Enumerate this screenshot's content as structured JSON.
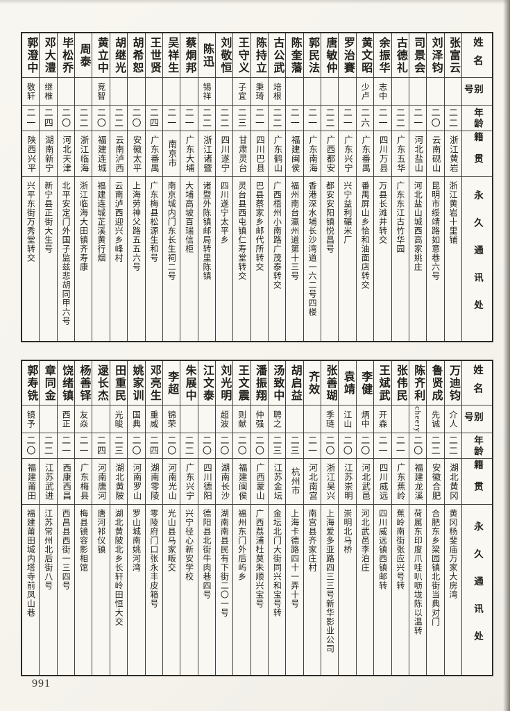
{
  "page_number": "991",
  "column_headers": {
    "name": "姓名",
    "courtesy": "别号",
    "age": "年龄",
    "native": "籍贯",
    "address": "永久通讯处"
  },
  "tables": [
    {
      "persons": [
        {
          "name": "张富云",
          "hao": "",
          "age": "二二",
          "native": "浙江黄岩",
          "address": "浙江黄岩十里铺"
        },
        {
          "name": "刘泽钧",
          "hao": "",
          "age": "二〇",
          "native": "云南砚山",
          "address": "昆明市绥靖路如意巷六号"
        },
        {
          "name": "司景会",
          "hao": "",
          "age": "二一",
          "native": "河北盐山",
          "address": "河北盐山城西高家姚庄"
        },
        {
          "name": "古德礼",
          "hao": "",
          "age": "二二",
          "native": "广东五华",
          "address": "广东东江古竹华园"
        },
        {
          "name": "余振华",
          "hao": "志中",
          "age": "二一",
          "native": "四川万县",
          "address": "万县长滩井转交"
        },
        {
          "name": "黄文昭",
          "hao": "少卢",
          "age": "二六",
          "native": "广东番禺",
          "address": "番禺屏山乡恰和油面店转交"
        },
        {
          "name": "罗治賽",
          "hao": "",
          "age": "二一",
          "native": "广东兴宁",
          "address": "兴宁益利碾米厂"
        },
        {
          "name": "唐敏仲",
          "hao": "",
          "age": "二二",
          "native": "广西都安",
          "address": "都安安阳镇悦昌号"
        },
        {
          "name": "郭民法",
          "hao": "",
          "age": "二一",
          "native": "广东南海",
          "address": "香港深水埔长沙湾道一六二号四楼"
        },
        {
          "name": "陈奎藩",
          "hao": "",
          "age": "二一",
          "native": "福建闽侯",
          "address": "福州南台瀛州道第十三号"
        },
        {
          "name": "古公武",
          "hao": "培根",
          "age": "二二",
          "native": "广东鹤山",
          "address": "广西梧州小南路广茂泰转交"
        },
        {
          "name": "陈持立",
          "hao": "秉琦",
          "age": "二一",
          "native": "四川巴县",
          "address": "巴县蔡家乡邮代所转交"
        },
        {
          "name": "王守义",
          "hao": "子宜",
          "age": "二三",
          "native": "甘肃灵台",
          "address": "灵台县西屯镇仁寿堂转交"
        },
        {
          "name": "刘敬恒",
          "hao": "",
          "age": "二二",
          "native": "四川遂宁",
          "address": "四川遂宁太平乡"
        },
        {
          "name": "陈迅",
          "hao": "锡祥",
          "age": "二二",
          "native": "浙江诸暨",
          "address": "诸暨外陈镇邮局转里陈镇"
        },
        {
          "name": "蔡烔邦",
          "hao": "",
          "age": "二一",
          "native": "广东大埔",
          "address": "大埔高坡百瑞信柜"
        },
        {
          "name": "吴祥生",
          "hao": "",
          "age": "二一",
          "native": "南京市",
          "address": "南京城内门东长生祠二号"
        },
        {
          "name": "王世贤",
          "hao": "",
          "age": "二四",
          "native": "广东番禺",
          "address": "广东梅县松源生和号"
        },
        {
          "name": "胡希恕",
          "hao": "",
          "age": "二〇",
          "native": "安徽太平",
          "address": "上海劳神父路五五六号"
        },
        {
          "name": "胡继光",
          "hao": "",
          "age": "二二",
          "native": "云南泸西",
          "address": "云南泸西迎兴乡峰村"
        },
        {
          "name": "黄立中",
          "hao": "竞智",
          "age": "二〇",
          "native": "福建连城",
          "address": "福建连城芷溪黄行烟"
        },
        {
          "name": "周泰",
          "hao": "",
          "age": "二二",
          "native": "浙江临海",
          "address": "浙江临海大田镇齐寿康"
        },
        {
          "name": "毕松乔",
          "hao": "",
          "age": "二〇",
          "native": "河北天津",
          "address": "北平安定门外国子监兹悲胡同甲六号"
        },
        {
          "name": "邓大澧",
          "hao": "继椎",
          "age": "二四",
          "native": "湖南新宁",
          "address": "新宁县正街大生号"
        },
        {
          "name": "郭澄中",
          "hao": "敬轩",
          "age": "二一",
          "native": "陕西兴平",
          "address": "兴平东街万秀堂转交"
        }
      ]
    },
    {
      "persons": [
        {
          "name": "万迪钧",
          "hao": "介人",
          "age": "二二",
          "native": "湖北黄冈",
          "address": "黄冈杨斐庙万家大房湾"
        },
        {
          "name": "鲁贤成",
          "hao": "先诚",
          "age": "二二",
          "native": "安徽合肥",
          "address": "合肥东乡梁园镇北街当典对门"
        },
        {
          "name": "陈齐利",
          "hao": "cheery",
          "age": "二〇",
          "native": "福建龙溪",
          "address": "荷属东印度爪哇叭呖垅陈以温转"
        },
        {
          "name": "张伟民",
          "hao": "",
          "age": "二一",
          "native": "广东蕉岭",
          "address": "蕉岭南街张应兴号转"
        },
        {
          "name": "王斌武",
          "hao": "开森",
          "age": "二一",
          "native": "四川威远",
          "address": "四川威远镇西镇邮转"
        },
        {
          "name": "李健",
          "hao": "炳中",
          "age": "二〇",
          "native": "河北武邑",
          "address": "河北武邑李泊庄"
        },
        {
          "name": "袁靖",
          "hao": "江山",
          "age": "二〇",
          "native": "江苏崇明",
          "address": "崇明北马桥"
        },
        {
          "name": "张善瑚",
          "hao": "季琏",
          "age": "二〇",
          "native": "浙江吴兴",
          "address": "上海爱多亚路四三三号新华影业公司"
        },
        {
          "name": "齐效",
          "hao": "",
          "age": "二一",
          "native": "河北南宫",
          "address": "南宫县齐家庄村"
        },
        {
          "name": "胡启益",
          "hao": "",
          "age": "二三",
          "native": "杭州市",
          "address": "上海卡德路四十一弄十号"
        },
        {
          "name": "汤致中",
          "hao": "聘之",
          "age": "二三",
          "native": "江苏金坛",
          "address": "金坛北门大街同兴和宝号转"
        },
        {
          "name": "潘振翔",
          "hao": "仲强",
          "age": "二〇",
          "native": "广西蒙山",
          "address": "广西荔浦杜莫朱顺兴宝号"
        },
        {
          "name": "王文震",
          "hao": "则献",
          "age": "二〇",
          "native": "福建闽侯",
          "address": "福州东门外后屿乡"
        },
        {
          "name": "刘光明",
          "hao": "超波",
          "age": "二〇",
          "native": "湖南长沙",
          "address": "湖南南县民有下街二〇一号"
        },
        {
          "name": "江文泰",
          "hao": "",
          "age": "二〇",
          "native": "四川德阳",
          "address": "德阳县北街牛肉巷四号"
        },
        {
          "name": "朱展中",
          "hao": "",
          "age": "二二",
          "native": "广东兴宁",
          "address": "兴宁径心新安学校"
        },
        {
          "name": "李超",
          "hao": "锦荣",
          "age": "二〇",
          "native": "河南光山",
          "address": "光山县马家畈交"
        },
        {
          "name": "邓亮生",
          "hao": "重威",
          "age": "二四",
          "native": "湖南零陵",
          "address": "零陵府门口张永丰皮箱号"
        },
        {
          "name": "姚家训",
          "hao": "国典",
          "age": "二〇",
          "native": "河南罗山",
          "address": "罗山城南姚河湾"
        },
        {
          "name": "田重民",
          "hao": "光晙",
          "age": "二三",
          "native": "湖北黄陂",
          "address": "湖北黄陂北乡长轩岭田恒大交"
        },
        {
          "name": "逯长杰",
          "hao": "",
          "age": "二四",
          "native": "河南唐河",
          "address": "唐河祁仪镇"
        },
        {
          "name": "杨善铎",
          "hao": "友焱",
          "age": "二一",
          "native": "广东梅县",
          "address": "梅县镜容影相馆"
        },
        {
          "name": "饶绪镇",
          "hao": "西正",
          "age": "二一",
          "native": "西康西昌",
          "address": "西昌县西街一三四号"
        },
        {
          "name": "章同金",
          "hao": "",
          "age": "二二",
          "native": "江苏武进",
          "address": "江苏常州北后街八号"
        },
        {
          "name": "郭寿铣",
          "hao": "镜予",
          "age": "二〇",
          "native": "福建莆田",
          "address": "福建莆田城内塔寺前凤山巷"
        }
      ]
    }
  ]
}
